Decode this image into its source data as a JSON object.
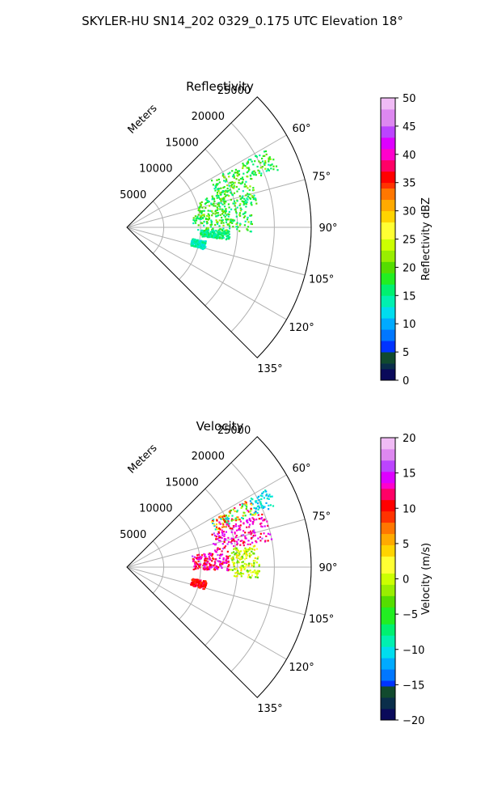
{
  "figure": {
    "title": "SKYLER-HU  SN14_202  0329_0.175 UTC Elevation 18°"
  },
  "chart_data": [
    {
      "type": "polar-sector-radar",
      "title": "Reflectivity",
      "radial_label": "Meters",
      "r_ticks": [
        "5000",
        "10000",
        "15000",
        "20000",
        "25000"
      ],
      "r_max": 25000,
      "azimuth_range_deg": [
        45,
        135
      ],
      "theta_ticks": [
        "60°",
        "75°",
        "90°",
        "105°",
        "120°",
        "135°"
      ],
      "grid": true,
      "colorbar": {
        "label": "Reflectivity dBZ",
        "min": 0,
        "max": 50,
        "ticks": [
          "0",
          "5",
          "10",
          "15",
          "20",
          "25",
          "30",
          "35",
          "40",
          "45",
          "50"
        ]
      },
      "echo_regions": [
        {
          "az": [
            61,
            70
          ],
          "r": [
            13000,
            22000
          ],
          "value_range": [
            14,
            22
          ]
        },
        {
          "az": [
            70,
            80
          ],
          "r": [
            10000,
            18000
          ],
          "value_range": [
            14,
            22
          ]
        },
        {
          "az": [
            80,
            92
          ],
          "r": [
            9000,
            17000
          ],
          "value_range": [
            14,
            22
          ]
        },
        {
          "az": [
            92,
            97
          ],
          "r": [
            10000,
            14000
          ],
          "value_range": [
            13,
            18
          ]
        },
        {
          "az": [
            100,
            106
          ],
          "r": [
            9000,
            11000
          ],
          "value_range": [
            12,
            16
          ]
        }
      ]
    },
    {
      "type": "polar-sector-radar",
      "title": "Velocity",
      "radial_label": "Meters",
      "r_ticks": [
        "5000",
        "10000",
        "15000",
        "20000",
        "25000"
      ],
      "r_max": 25000,
      "azimuth_range_deg": [
        45,
        135
      ],
      "theta_ticks": [
        "60°",
        "75°",
        "90°",
        "105°",
        "120°",
        "135°"
      ],
      "grid": true,
      "colorbar": {
        "label": "Velocity (m/s)",
        "min": -20,
        "max": 20,
        "ticks": [
          "−20",
          "−15",
          "−10",
          "−5",
          "0",
          "5",
          "10",
          "15",
          "20"
        ]
      },
      "echo_regions": [
        {
          "az": [
            61,
            68
          ],
          "r": [
            13000,
            22000
          ],
          "value_range": [
            -12,
            14
          ]
        },
        {
          "az": [
            68,
            80
          ],
          "r": [
            12000,
            20000
          ],
          "value_range": [
            10,
            16
          ]
        },
        {
          "az": [
            80,
            92
          ],
          "r": [
            9000,
            14000
          ],
          "value_range": [
            8,
            16
          ]
        },
        {
          "az": [
            80,
            95
          ],
          "r": [
            14000,
            18000
          ],
          "value_range": [
            -4,
            4
          ]
        },
        {
          "az": [
            100,
            106
          ],
          "r": [
            9000,
            11000
          ],
          "value_range": [
            8,
            12
          ]
        }
      ]
    }
  ]
}
